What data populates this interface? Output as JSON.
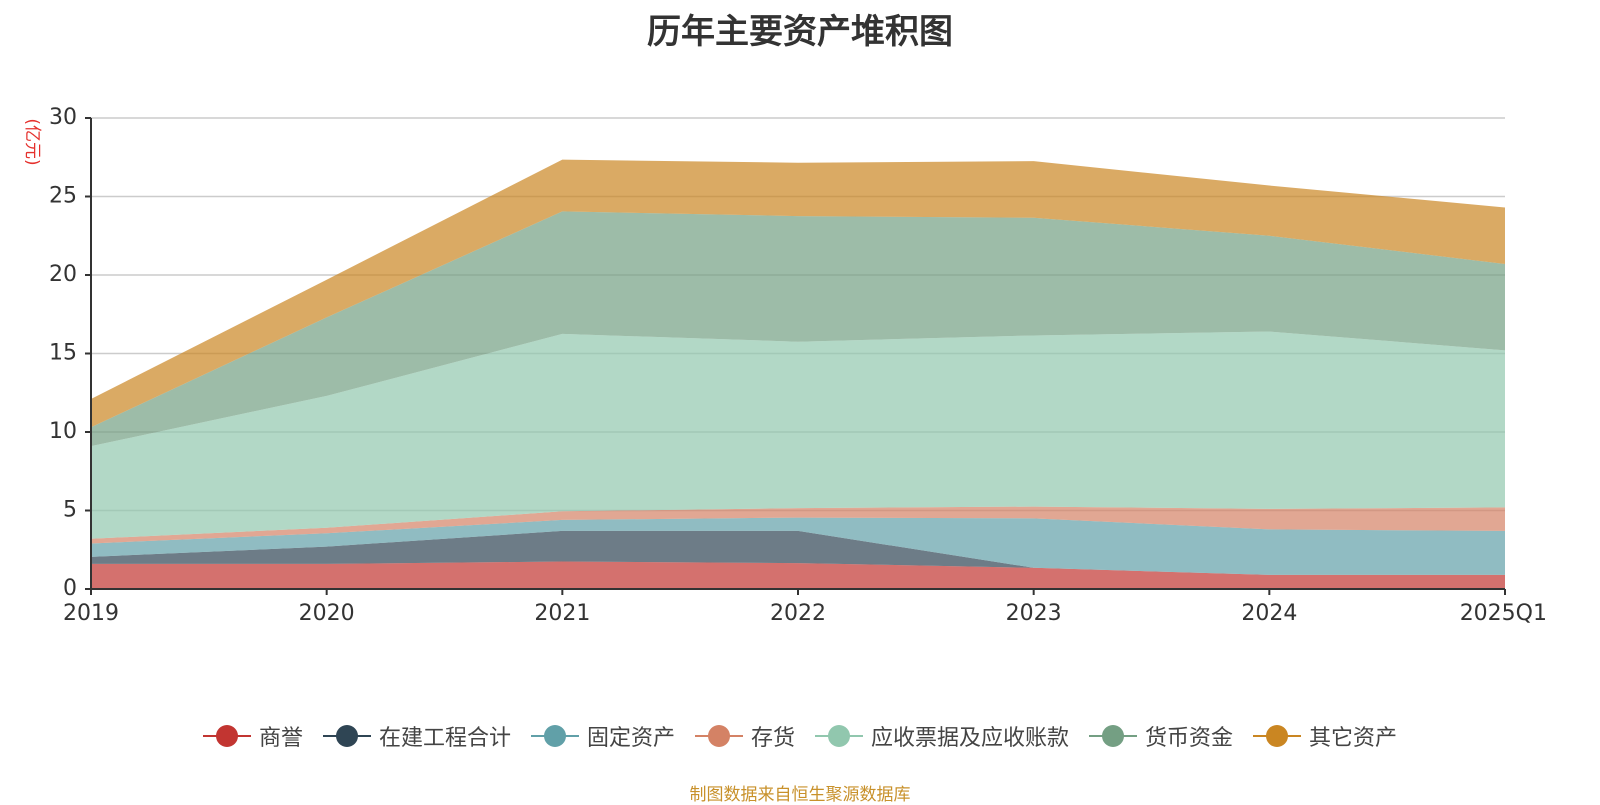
{
  "chart_data": {
    "type": "area",
    "stacked": true,
    "title": "历年主要资产堆积图",
    "ylabel": "(亿元)",
    "xlabel": "",
    "x": [
      "2019",
      "2020",
      "2021",
      "2022",
      "2023",
      "2024",
      "2025Q1"
    ],
    "ylim": [
      0,
      30
    ],
    "yticks": [
      0,
      5,
      10,
      15,
      20,
      25,
      30
    ],
    "grid": true,
    "legend_position": "bottom",
    "series": [
      {
        "name": "商誉",
        "color": "#c23531",
        "values": [
          1.6,
          1.6,
          1.75,
          1.65,
          1.35,
          0.9,
          0.9
        ]
      },
      {
        "name": "在建工程合计",
        "color": "#2f4554",
        "values": [
          0.45,
          1.1,
          1.95,
          2.05,
          0.0,
          0.0,
          0.0
        ]
      },
      {
        "name": "固定资产",
        "color": "#61a0a8",
        "values": [
          0.85,
          0.85,
          0.7,
          0.85,
          3.15,
          2.9,
          2.8
        ]
      },
      {
        "name": "存货",
        "color": "#d48265",
        "values": [
          0.3,
          0.35,
          0.55,
          0.6,
          0.75,
          1.3,
          1.5
        ]
      },
      {
        "name": "应收票据及应收账款",
        "color": "#91c7ae",
        "values": [
          5.9,
          8.4,
          11.3,
          10.6,
          10.9,
          11.3,
          10.0
        ]
      },
      {
        "name": "货币资金",
        "color": "#749f83",
        "values": [
          1.2,
          5.0,
          7.8,
          8.0,
          7.5,
          6.1,
          5.5
        ]
      },
      {
        "name": "其它资产",
        "color": "#ca8622",
        "values": [
          1.8,
          2.4,
          3.3,
          3.4,
          3.6,
          3.2,
          3.6
        ]
      }
    ],
    "source": "制图数据来自恒生聚源数据库"
  }
}
